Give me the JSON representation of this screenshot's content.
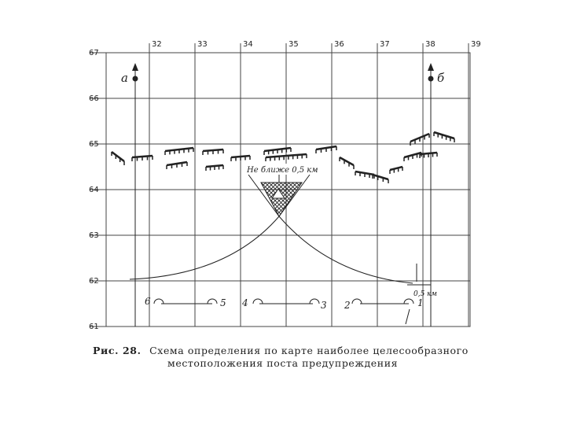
{
  "grid": {
    "x_labels": [
      "32",
      "33",
      "34",
      "35",
      "36",
      "37",
      "38",
      "39"
    ],
    "y_labels": [
      "67",
      "66",
      "65",
      "64",
      "63",
      "62",
      "61"
    ]
  },
  "markers": {
    "a": "а",
    "b": "б"
  },
  "annotations": {
    "min_distance": "Не ближе 0,5 км",
    "offset": "0,5 км"
  },
  "posts": [
    "1",
    "2",
    "3",
    "4",
    "5",
    "6"
  ],
  "caption": {
    "number": "Рис. 28.",
    "line1": "Схема определения по карте наиболее целесообразного",
    "line2": "местоположения поста предупреждения"
  }
}
